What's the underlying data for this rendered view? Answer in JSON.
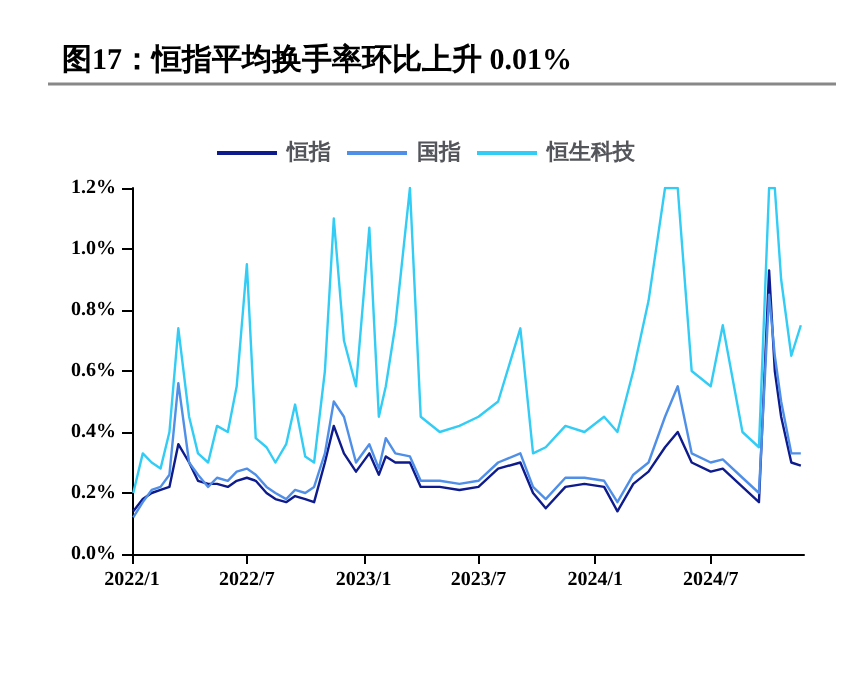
{
  "chart_data": {
    "type": "line",
    "title": "图17：恒指平均换手率环比上升 0.01%",
    "legend": "top",
    "grid": false,
    "marker": "none",
    "line_style": "solid",
    "x": [
      "2022-01-03",
      "2022-01-18",
      "2022-02-01",
      "2022-02-15",
      "2022-03-01",
      "2022-03-15",
      "2022-04-01",
      "2022-04-15",
      "2022-05-01",
      "2022-05-15",
      "2022-06-01",
      "2022-06-15",
      "2022-07-01",
      "2022-07-15",
      "2022-08-01",
      "2022-08-15",
      "2022-09-01",
      "2022-09-15",
      "2022-10-01",
      "2022-10-15",
      "2022-11-01",
      "2022-11-15",
      "2022-12-01",
      "2022-12-20",
      "2023-01-10",
      "2023-01-25",
      "2023-02-05",
      "2023-02-20",
      "2023-03-15",
      "2023-04-01",
      "2023-05-01",
      "2023-06-01",
      "2023-07-01",
      "2023-08-01",
      "2023-09-05",
      "2023-09-25",
      "2023-10-15",
      "2023-11-15",
      "2023-12-15",
      "2024-01-15",
      "2024-02-05",
      "2024-03-01",
      "2024-03-25",
      "2024-04-20",
      "2024-05-10",
      "2024-06-01",
      "2024-07-01",
      "2024-07-20",
      "2024-08-20",
      "2024-09-15",
      "2024-10-01",
      "2024-10-10",
      "2024-10-20",
      "2024-11-05",
      "2024-11-20"
    ],
    "xlim": [
      "2022-01-01",
      "2024-11-25"
    ],
    "xticks": [
      {
        "value": "2022-01-01",
        "label": "2022/1"
      },
      {
        "value": "2022-07-01",
        "label": "2022/7"
      },
      {
        "value": "2023-01-01",
        "label": "2023/1"
      },
      {
        "value": "2023-07-01",
        "label": "2023/7"
      },
      {
        "value": "2024-01-01",
        "label": "2024/1"
      },
      {
        "value": "2024-07-01",
        "label": "2024/7"
      }
    ],
    "ylim": [
      0,
      1.2
    ],
    "yticks": [
      {
        "value": 0,
        "label": "0.0%"
      },
      {
        "value": 0.2,
        "label": "0.2%"
      },
      {
        "value": 0.4,
        "label": "0.4%"
      },
      {
        "value": 0.6,
        "label": "0.6%"
      },
      {
        "value": 0.8,
        "label": "0.8%"
      },
      {
        "value": 1.0,
        "label": "1.0%"
      },
      {
        "value": 1.2,
        "label": "1.2%"
      }
    ],
    "series": [
      {
        "name": "恒指",
        "color": "#0d1b8c",
        "values": [
          0.14,
          0.18,
          0.2,
          0.21,
          0.22,
          0.36,
          0.3,
          0.24,
          0.23,
          0.23,
          0.22,
          0.24,
          0.25,
          0.24,
          0.2,
          0.18,
          0.17,
          0.19,
          0.18,
          0.17,
          0.3,
          0.42,
          0.33,
          0.27,
          0.33,
          0.26,
          0.32,
          0.3,
          0.3,
          0.22,
          0.22,
          0.21,
          0.22,
          0.28,
          0.3,
          0.2,
          0.15,
          0.22,
          0.23,
          0.22,
          0.14,
          0.23,
          0.27,
          0.35,
          0.4,
          0.3,
          0.27,
          0.28,
          0.22,
          0.17,
          0.93,
          0.6,
          0.45,
          0.3,
          0.29
        ]
      },
      {
        "name": "国指",
        "color": "#4f8fe8",
        "values": [
          0.12,
          0.17,
          0.21,
          0.22,
          0.26,
          0.56,
          0.3,
          0.26,
          0.22,
          0.25,
          0.24,
          0.27,
          0.28,
          0.26,
          0.22,
          0.2,
          0.18,
          0.21,
          0.2,
          0.22,
          0.33,
          0.5,
          0.45,
          0.3,
          0.36,
          0.28,
          0.38,
          0.33,
          0.32,
          0.24,
          0.24,
          0.23,
          0.24,
          0.3,
          0.33,
          0.22,
          0.18,
          0.25,
          0.25,
          0.24,
          0.17,
          0.26,
          0.3,
          0.45,
          0.55,
          0.33,
          0.3,
          0.31,
          0.25,
          0.2,
          0.85,
          0.65,
          0.5,
          0.33,
          0.33
        ]
      },
      {
        "name": "恒生科技",
        "color": "#33ccf5",
        "values": [
          0.2,
          0.33,
          0.3,
          0.28,
          0.4,
          0.74,
          0.45,
          0.33,
          0.3,
          0.42,
          0.4,
          0.55,
          0.95,
          0.38,
          0.35,
          0.3,
          0.36,
          0.49,
          0.32,
          0.3,
          0.6,
          1.1,
          0.7,
          0.55,
          1.07,
          0.45,
          0.55,
          0.75,
          1.2,
          0.45,
          0.4,
          0.42,
          0.45,
          0.5,
          0.74,
          0.33,
          0.35,
          0.42,
          0.4,
          0.45,
          0.4,
          0.6,
          0.83,
          1.2,
          1.2,
          0.6,
          0.55,
          0.75,
          0.4,
          0.35,
          1.2,
          1.2,
          0.9,
          0.65,
          0.75
        ]
      }
    ]
  }
}
